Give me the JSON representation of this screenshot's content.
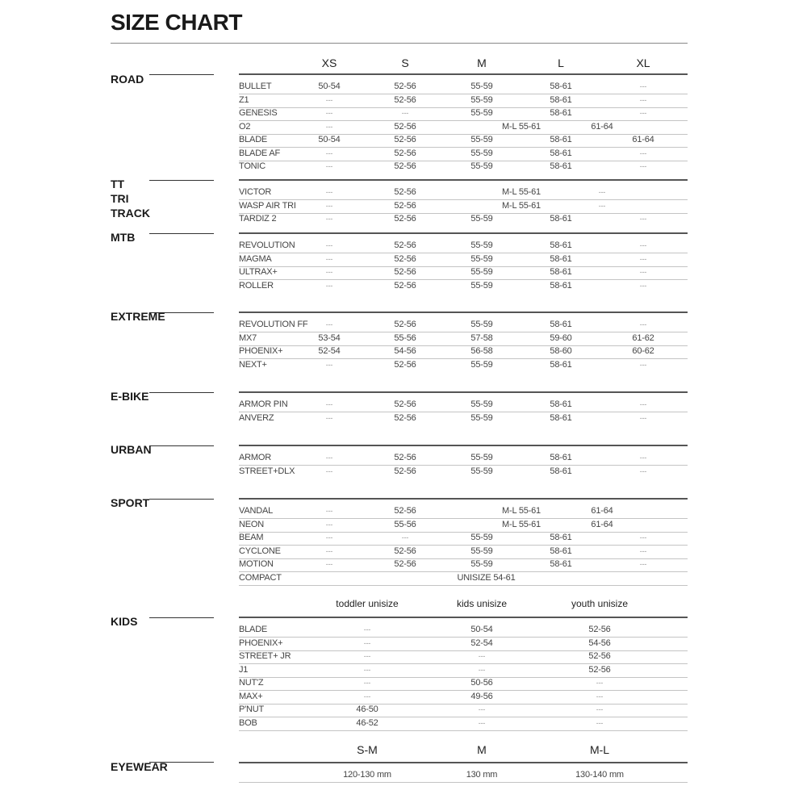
{
  "title": "SIZE CHART",
  "size_headers": [
    "XS",
    "S",
    "M",
    "L",
    "XL"
  ],
  "sections": [
    {
      "label": [
        "ROAD"
      ],
      "rows": [
        {
          "name": "BULLET",
          "cells": [
            "50-54",
            "52-56",
            "55-59",
            "58-61",
            "---"
          ]
        },
        {
          "name": "Z1",
          "cells": [
            "---",
            "52-56",
            "55-59",
            "58-61",
            "---"
          ]
        },
        {
          "name": "GENESIS",
          "cells": [
            "---",
            "---",
            "55-59",
            "58-61",
            "---"
          ]
        },
        {
          "name": "O2",
          "cells": [
            "---",
            "52-56",
            "M-L 55-61",
            null,
            "61-64"
          ]
        },
        {
          "name": "BLADE",
          "cells": [
            "50-54",
            "52-56",
            "55-59",
            "58-61",
            "61-64"
          ]
        },
        {
          "name": "BLADE AF",
          "cells": [
            "---",
            "52-56",
            "55-59",
            "58-61",
            "---"
          ]
        },
        {
          "name": "TONIC",
          "cells": [
            "---",
            "52-56",
            "55-59",
            "58-61",
            "---"
          ]
        }
      ]
    },
    {
      "label": [
        "TT",
        "TRI",
        "TRACK"
      ],
      "rows": [
        {
          "name": "VICTOR",
          "cells": [
            "---",
            "52-56",
            "M-L 55-61",
            null,
            "---"
          ]
        },
        {
          "name": "WASP AIR TRI",
          "cells": [
            "---",
            "52-56",
            "M-L 55-61",
            null,
            "---"
          ]
        },
        {
          "name": "TARDIZ 2",
          "cells": [
            "---",
            "52-56",
            "55-59",
            "58-61",
            "---"
          ]
        }
      ]
    },
    {
      "label": [
        "MTB"
      ],
      "rows": [
        {
          "name": "REVOLUTION",
          "cells": [
            "---",
            "52-56",
            "55-59",
            "58-61",
            "---"
          ]
        },
        {
          "name": "MAGMA",
          "cells": [
            "---",
            "52-56",
            "55-59",
            "58-61",
            "---"
          ]
        },
        {
          "name": "ULTRAX+",
          "cells": [
            "---",
            "52-56",
            "55-59",
            "58-61",
            "---"
          ]
        },
        {
          "name": "ROLLER",
          "cells": [
            "---",
            "52-56",
            "55-59",
            "58-61",
            "---"
          ]
        }
      ]
    },
    {
      "label": [
        "EXTREME"
      ],
      "rows": [
        {
          "name": "REVOLUTION FF",
          "cells": [
            "---",
            "52-56",
            "55-59",
            "58-61",
            "---"
          ]
        },
        {
          "name": "MX7",
          "cells": [
            "53-54",
            "55-56",
            "57-58",
            "59-60",
            "61-62"
          ]
        },
        {
          "name": "PHOENIX+",
          "cells": [
            "52-54",
            "54-56",
            "56-58",
            "58-60",
            "60-62"
          ]
        },
        {
          "name": "NEXT+",
          "cells": [
            "---",
            "52-56",
            "55-59",
            "58-61",
            "---"
          ]
        }
      ]
    },
    {
      "label": [
        "E-BIKE"
      ],
      "rows": [
        {
          "name": "ARMOR PIN",
          "cells": [
            "---",
            "52-56",
            "55-59",
            "58-61",
            "---"
          ]
        },
        {
          "name": "ANVERZ",
          "cells": [
            "---",
            "52-56",
            "55-59",
            "58-61",
            "---"
          ]
        }
      ]
    },
    {
      "label": [
        "URBAN"
      ],
      "rows": [
        {
          "name": "ARMOR",
          "cells": [
            "---",
            "52-56",
            "55-59",
            "58-61",
            "---"
          ]
        },
        {
          "name": "STREET+DLX",
          "cells": [
            "---",
            "52-56",
            "55-59",
            "58-61",
            "---"
          ]
        }
      ]
    },
    {
      "label": [
        "SPORT"
      ],
      "rows": [
        {
          "name": "VANDAL",
          "cells": [
            "---",
            "52-56",
            "M-L 55-61",
            null,
            "61-64"
          ]
        },
        {
          "name": "NEON",
          "cells": [
            "---",
            "55-56",
            "M-L 55-61",
            null,
            "61-64"
          ]
        },
        {
          "name": "BEAM",
          "cells": [
            "---",
            "---",
            "55-59",
            "58-61",
            "---"
          ]
        },
        {
          "name": "CYCLONE",
          "cells": [
            "---",
            "52-56",
            "55-59",
            "58-61",
            "---"
          ]
        },
        {
          "name": "MOTION",
          "cells": [
            "---",
            "52-56",
            "55-59",
            "58-61",
            "---"
          ]
        },
        {
          "name": "COMPACT",
          "cells": [
            null,
            null,
            "UNISIZE 54-61",
            null,
            null
          ]
        }
      ]
    }
  ],
  "kids": {
    "label": "KIDS",
    "headers": [
      "toddler unisize",
      "kids unisize",
      "youth unisize"
    ],
    "rows": [
      {
        "name": "BLADE",
        "cells": [
          "---",
          "50-54",
          "52-56"
        ]
      },
      {
        "name": "PHOENIX+",
        "cells": [
          "---",
          "52-54",
          "54-56"
        ]
      },
      {
        "name": "STREET+ JR",
        "cells": [
          "---",
          "---",
          "52-56"
        ]
      },
      {
        "name": "J1",
        "cells": [
          "---",
          "---",
          "52-56"
        ]
      },
      {
        "name": "NUT'Z",
        "cells": [
          "---",
          "50-56",
          "---"
        ]
      },
      {
        "name": "MAX+",
        "cells": [
          "---",
          "49-56",
          "---"
        ]
      },
      {
        "name": "P'NUT",
        "cells": [
          "46-50",
          "---",
          "---"
        ]
      },
      {
        "name": "BOB",
        "cells": [
          "46-52",
          "---",
          "---"
        ]
      }
    ]
  },
  "eyewear": {
    "label": "EYEWEAR",
    "headers": [
      "S-M",
      "M",
      "M-L"
    ],
    "values": [
      "120-130 mm",
      "130 mm",
      "130-140 mm"
    ]
  }
}
